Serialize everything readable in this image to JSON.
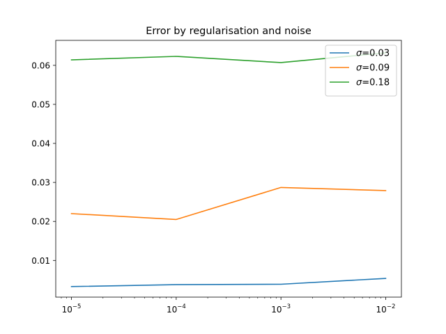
{
  "chart_data": {
    "type": "line",
    "title": "Error by regularisation and noise",
    "xlabel": "",
    "ylabel": "",
    "x_scale": "log",
    "x": [
      1e-05,
      0.0001,
      0.001,
      0.01
    ],
    "x_tick_labels": [
      {
        "base": "10",
        "exp": "−5"
      },
      {
        "base": "10",
        "exp": "−4"
      },
      {
        "base": "10",
        "exp": "−3"
      },
      {
        "base": "10",
        "exp": "−2"
      }
    ],
    "y_ticks": [
      0.01,
      0.02,
      0.03,
      0.04,
      0.05,
      0.06
    ],
    "y_tick_labels": [
      "0.01",
      "0.02",
      "0.03",
      "0.04",
      "0.05",
      "0.06"
    ],
    "ylim": [
      0.0006,
      0.0664
    ],
    "xlim_log10": [
      -5.15,
      -1.85
    ],
    "grid": false,
    "legend_position": "top-right",
    "series": [
      {
        "name": "0.03",
        "legend_prefix": "σ",
        "color": "#1f77b4",
        "values": [
          0.0033,
          0.0038,
          0.0039,
          0.0054
        ]
      },
      {
        "name": "0.09",
        "legend_prefix": "σ",
        "color": "#ff7f0e",
        "values": [
          0.022,
          0.0205,
          0.0287,
          0.0279
        ]
      },
      {
        "name": "0.18",
        "legend_prefix": "σ",
        "color": "#2ca02c",
        "values": [
          0.0614,
          0.0623,
          0.0607,
          0.0632
        ]
      }
    ]
  }
}
